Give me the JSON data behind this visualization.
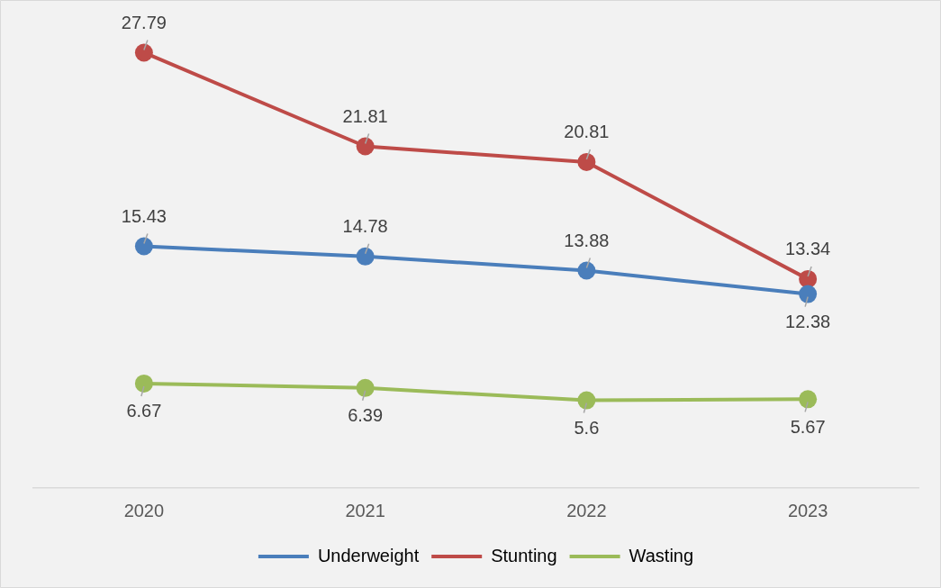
{
  "chart_data": {
    "type": "line",
    "categories": [
      "2020",
      "2021",
      "2022",
      "2023"
    ],
    "series": [
      {
        "name": "Underweight",
        "color": "#4a7ebb",
        "values": [
          15.43,
          14.78,
          13.88,
          12.38
        ]
      },
      {
        "name": "Stunting",
        "color": "#be4b48",
        "values": [
          27.79,
          21.81,
          20.81,
          13.34
        ]
      },
      {
        "name": "Wasting",
        "color": "#9bbb59",
        "values": [
          6.67,
          6.39,
          5.6,
          5.67
        ]
      }
    ],
    "tick_labels": "x",
    "data_labels": true,
    "legend": "bottom",
    "marker": "circle",
    "line_style": "solid",
    "grid": false
  }
}
